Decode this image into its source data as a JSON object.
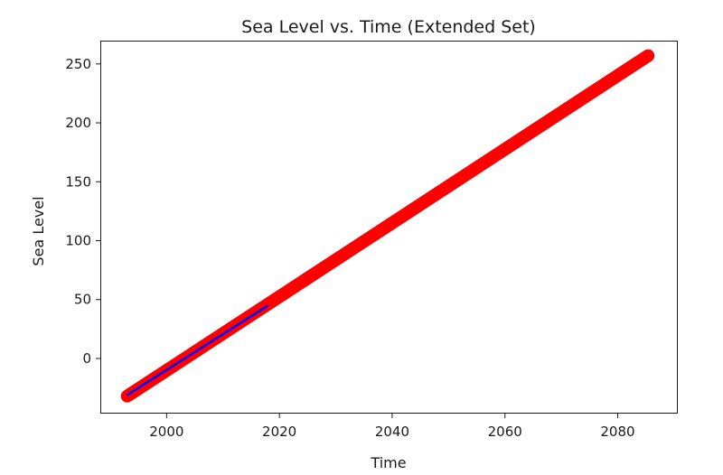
{
  "chart_data": {
    "type": "scatter",
    "title": "Sea Level vs. Time (Extended Set)",
    "xlabel": "Time",
    "ylabel": "Sea Level",
    "xlim": [
      1988.4,
      2090.5
    ],
    "ylim": [
      -46,
      269
    ],
    "xticks": [
      2000,
      2020,
      2040,
      2060,
      2080
    ],
    "yticks": [
      0,
      50,
      100,
      150,
      200,
      250
    ],
    "grid": false,
    "legend": "none",
    "colors": {
      "scatter": "#ff0000",
      "line": "#0000ff"
    },
    "series": [
      {
        "type": "scatter",
        "x_start": 1993,
        "x_end": 2085.4,
        "x_step": 0.1,
        "y_start": -32,
        "y_end": 257
      },
      {
        "type": "line",
        "x": [
          1993,
          2018
        ],
        "y": [
          -31,
          45
        ]
      }
    ]
  }
}
